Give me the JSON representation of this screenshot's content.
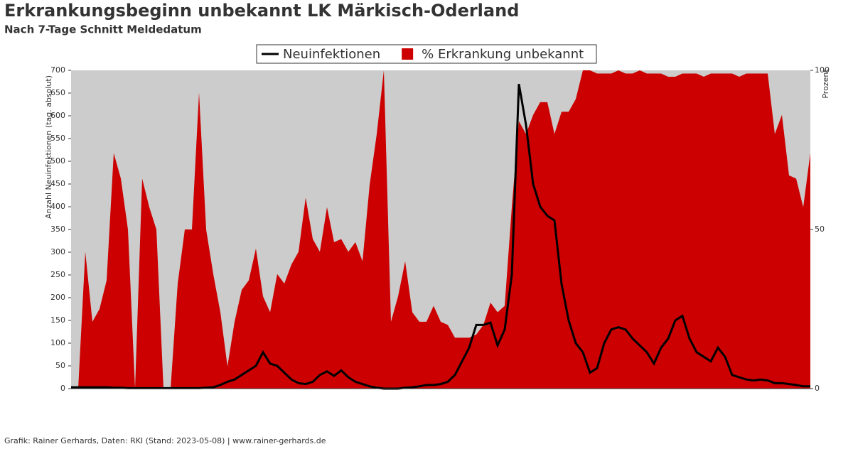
{
  "chart_data": {
    "type": "line-area",
    "title": "Erkrankungsbeginn unbekannt LK Märkisch-Oderland",
    "subtitle": "Nach 7-Tage Schnitt Meldedatum",
    "y_label": "Anzahl Neuinfektionen (tag. absolut)",
    "y2_label": "Prozent",
    "footer": "Grafik: Rainer Gerhards, Daten: RKI (Stand: 2023-05-08) | www.rainer-gerhards.de",
    "legend": "top",
    "categories": [
      null,
      null,
      null,
      null,
      null,
      null,
      null,
      null,
      null,
      null,
      null,
      null,
      null,
      null,
      null,
      null,
      null,
      null,
      null,
      null,
      null,
      null,
      null,
      null,
      null,
      null,
      null,
      null,
      null,
      null,
      null,
      null,
      null,
      null,
      null,
      null,
      null,
      null,
      null,
      null,
      null,
      null,
      null,
      null,
      null,
      null,
      null,
      null,
      null,
      null,
      null,
      null,
      null,
      null,
      null,
      null,
      null,
      null,
      null,
      null,
      null,
      null,
      null,
      null,
      null,
      null,
      null,
      null,
      null,
      null,
      null,
      null,
      null,
      null,
      null,
      null,
      null,
      null,
      null,
      null,
      null,
      null,
      null,
      null,
      null,
      null,
      null,
      null,
      null,
      null,
      null,
      null,
      null,
      null,
      null,
      null,
      null,
      null,
      null,
      null,
      null,
      null,
      null,
      null,
      null
    ],
    "series": [
      {
        "name": "% Erkrankung unbekannt",
        "color": "#cc0000",
        "axis": "y2",
        "kind": "area",
        "values": [
          0,
          0,
          43,
          21,
          25,
          34,
          74,
          66,
          50,
          0,
          66,
          57,
          50,
          0,
          0,
          33,
          50,
          50,
          93,
          50,
          36,
          24,
          7,
          21,
          31,
          34,
          44,
          29,
          24,
          36,
          33,
          39,
          43,
          60,
          47,
          43,
          57,
          46,
          47,
          43,
          46,
          40,
          64,
          80,
          100,
          21,
          29,
          40,
          24,
          21,
          21,
          26,
          21,
          20,
          16,
          16,
          16,
          17,
          20,
          27,
          24,
          26,
          57,
          84,
          80,
          86,
          90,
          90,
          80,
          87,
          87,
          91,
          100,
          100,
          99,
          99,
          99,
          100,
          99,
          99,
          100,
          99,
          99,
          99,
          98,
          98,
          99,
          99,
          99,
          98,
          99,
          99,
          99,
          99,
          98,
          99,
          99,
          99,
          99,
          80,
          86,
          67,
          66,
          57,
          74
        ]
      },
      {
        "name": "Neuinfektionen",
        "color": "#000000",
        "axis": "y",
        "kind": "line",
        "values": [
          3,
          3,
          3,
          3,
          3,
          3,
          2,
          2,
          1,
          1,
          1,
          1,
          1,
          1,
          1,
          1,
          1,
          1,
          1,
          2,
          3,
          8,
          15,
          20,
          30,
          40,
          50,
          80,
          55,
          50,
          35,
          20,
          12,
          10,
          15,
          30,
          38,
          28,
          40,
          25,
          15,
          10,
          5,
          2,
          0,
          0,
          0,
          2,
          3,
          5,
          8,
          8,
          10,
          15,
          30,
          60,
          90,
          140,
          140,
          145,
          95,
          130,
          250,
          670,
          580,
          450,
          400,
          380,
          370,
          230,
          150,
          100,
          80,
          35,
          45,
          100,
          130,
          135,
          130,
          110,
          95,
          80,
          55,
          90,
          110,
          150,
          160,
          110,
          80,
          70,
          60,
          90,
          70,
          30,
          25,
          20,
          18,
          20,
          18,
          12,
          12,
          10,
          8,
          5,
          5
        ]
      }
    ],
    "ylim": [
      0,
      700
    ],
    "yticks": [
      0,
      50,
      100,
      150,
      200,
      250,
      300,
      350,
      400,
      450,
      500,
      550,
      600,
      650,
      700
    ],
    "y2lim": [
      0,
      100
    ],
    "y2ticks": [
      0,
      50,
      100
    ],
    "background": "#cccccc"
  }
}
